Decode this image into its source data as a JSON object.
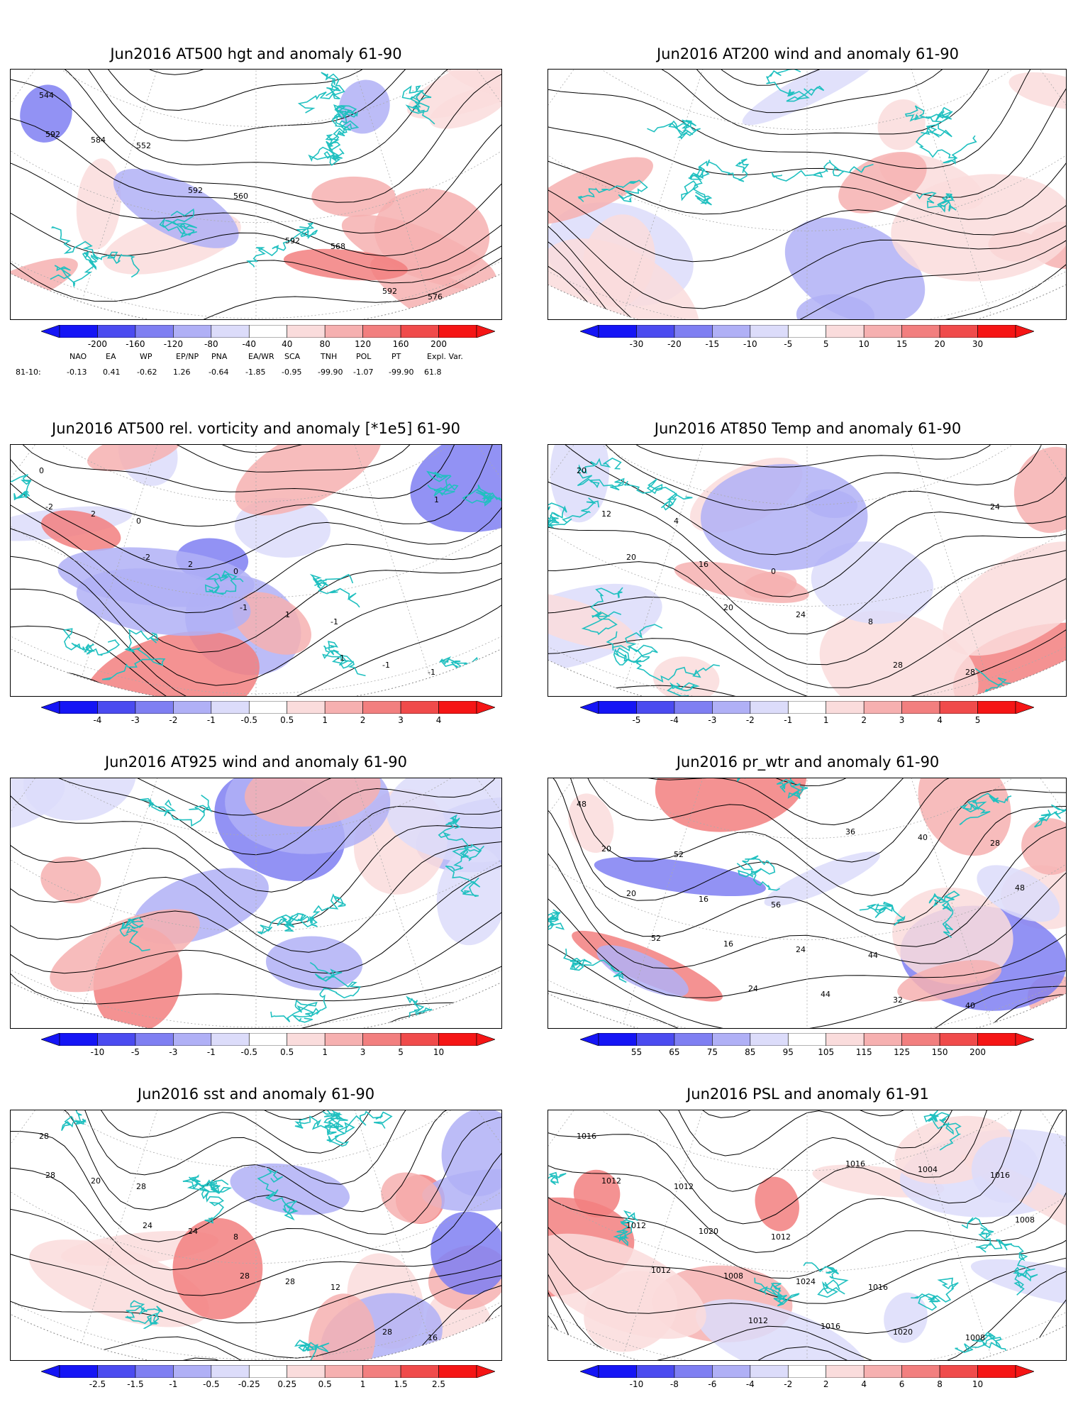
{
  "panels": [
    {
      "title": "Jun2016 AT500 hgt and anomaly 61-90",
      "contour_labels": [
        "544",
        "552",
        "560",
        "568",
        "576",
        "584",
        "592",
        "592",
        "592",
        "592"
      ],
      "ticks": [
        "-200",
        "-160",
        "-120",
        "-80",
        "-40",
        "40",
        "80",
        "120",
        "160",
        "200"
      ]
    },
    {
      "title": "Jun2016 AT200 wind and anomaly 61-90",
      "contour_labels": [],
      "ticks": [
        "-30",
        "-20",
        "-15",
        "-10",
        "-5",
        "5",
        "10",
        "15",
        "20",
        "30"
      ]
    },
    {
      "title": "Jun2016 AT500 rel. vorticity and anomaly [*1e5] 61-90",
      "contour_labels": [
        "0",
        "0",
        "0",
        "-1",
        "-1",
        "2",
        "2",
        "1",
        "-1",
        "-2",
        "-2",
        "-1",
        "-1",
        "1"
      ],
      "ticks": [
        "-4",
        "-3",
        "-2",
        "-1",
        "-0.5",
        "0.5",
        "1",
        "2",
        "3",
        "4"
      ]
    },
    {
      "title": "Jun2016 AT850 Temp and anomaly 61-90",
      "contour_labels": [
        "20",
        "4",
        "0",
        "8",
        "28",
        "12",
        "16",
        "24",
        "28",
        "24",
        "20",
        "20"
      ],
      "ticks": [
        "-5",
        "-4",
        "-3",
        "-2",
        "-1",
        "1",
        "2",
        "3",
        "4",
        "5"
      ]
    },
    {
      "title": "Jun2016 AT925 wind and anomaly 61-90",
      "contour_labels": [],
      "ticks": [
        "-10",
        "-5",
        "-3",
        "-1",
        "-0.5",
        "0.5",
        "1",
        "3",
        "5",
        "10"
      ]
    },
    {
      "title": "Jun2016 pr_wtr and anomaly 61-90",
      "contour_labels": [
        "48",
        "52",
        "56",
        "44",
        "40",
        "20",
        "16",
        "24",
        "32",
        "28",
        "20",
        "16",
        "44",
        "40",
        "48",
        "52",
        "24",
        "36"
      ],
      "ticks": [
        "55",
        "65",
        "75",
        "85",
        "95",
        "105",
        "115",
        "125",
        "150",
        "200"
      ]
    },
    {
      "title": "Jun2016 sst and anomaly 61-90",
      "contour_labels": [
        "28",
        "28",
        "8",
        "12",
        "16",
        "20",
        "24",
        "28",
        "28",
        "28",
        "24",
        "28"
      ],
      "ticks": [
        "-2.5",
        "-1.5",
        "-1",
        "-0.5",
        "-0.25",
        "0.25",
        "0.5",
        "1",
        "1.5",
        "2.5"
      ]
    },
    {
      "title": "Jun2016 PSL and anomaly 61-91",
      "contour_labels": [
        "1016",
        "1012",
        "1012",
        "1016",
        "1008",
        "1012",
        "1020",
        "1024",
        "1020",
        "1016",
        "1012",
        "1008",
        "1016",
        "1004",
        "1008",
        "1012",
        "1012",
        "1016"
      ],
      "ticks": [
        "-10",
        "-8",
        "-6",
        "-4",
        "-2",
        "2",
        "4",
        "6",
        "8",
        "10"
      ]
    }
  ],
  "indices": {
    "header": [
      "NAO",
      "EA",
      "WP",
      "EP/NP",
      "PNA",
      "EA/WR",
      "SCA",
      "TNH",
      "POL",
      "PT",
      "Expl. Var."
    ],
    "row_label": "81-10:",
    "values": [
      "-0.13",
      "0.41",
      "-0.62",
      "1.26",
      "-0.64",
      "-1.85",
      "-0.95",
      "-99.90",
      "-1.07",
      "-99.90",
      "61.8"
    ]
  },
  "colors": {
    "blue": [
      "#1515f5",
      "#4b4bf0",
      "#7f7ff2",
      "#b0b0f6",
      "#dcdcfa"
    ],
    "red": [
      "#fadcdc",
      "#f6b0b0",
      "#f27f7f",
      "#f04b4b",
      "#f51515"
    ],
    "coast": "#20c0c0",
    "contour": "#000000",
    "grid": "#aaaaaa"
  }
}
